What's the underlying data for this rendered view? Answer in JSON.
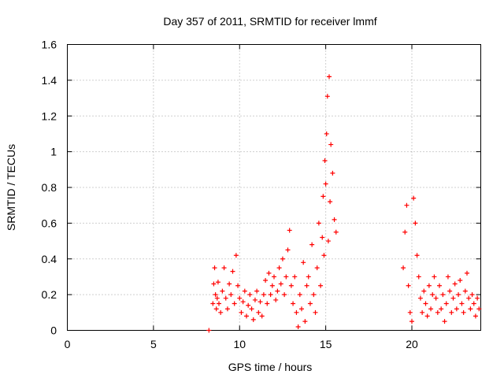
{
  "chart_data": {
    "type": "scatter",
    "title": "Day 357 of 2011, SRMTID for receiver lmmf",
    "xlabel": "GPS time / hours",
    "ylabel": "SRMTID / TECUs",
    "xlim": [
      0,
      24
    ],
    "ylim": [
      0,
      1.6
    ],
    "xticks": [
      0,
      5,
      10,
      15,
      20
    ],
    "xtick_labels": [
      "0",
      "5",
      "10",
      "15",
      "20"
    ],
    "yticks": [
      0,
      0.2,
      0.4,
      0.6,
      0.8,
      1.0,
      1.2,
      1.4,
      1.6
    ],
    "ytick_labels": [
      "0",
      "0.2",
      "0.4",
      "0.6",
      "0.8",
      "1",
      "1.2",
      "1.4",
      "1.6"
    ],
    "grid": true,
    "marker": "plus",
    "series": [
      {
        "name": "SRMTID",
        "color": "#ff0000",
        "x": [
          8.22,
          8.45,
          8.5,
          8.55,
          8.6,
          8.65,
          8.7,
          8.75,
          8.8,
          8.9,
          9.0,
          9.1,
          9.2,
          9.3,
          9.4,
          9.5,
          9.6,
          9.7,
          9.8,
          9.9,
          10.0,
          10.1,
          10.2,
          10.3,
          10.4,
          10.5,
          10.6,
          10.7,
          10.8,
          10.9,
          11.0,
          11.1,
          11.2,
          11.3,
          11.4,
          11.5,
          11.6,
          11.7,
          11.8,
          11.9,
          12.0,
          12.1,
          12.2,
          12.3,
          12.4,
          12.5,
          12.6,
          12.7,
          12.8,
          12.9,
          13.0,
          13.1,
          13.2,
          13.3,
          13.4,
          13.5,
          13.6,
          13.7,
          13.8,
          13.9,
          14.0,
          14.1,
          14.2,
          14.3,
          14.4,
          14.5,
          14.6,
          14.7,
          14.8,
          14.85,
          14.9,
          14.95,
          15.0,
          15.05,
          15.1,
          15.15,
          15.2,
          15.25,
          15.3,
          15.4,
          15.5,
          15.6,
          19.5,
          19.6,
          19.7,
          19.8,
          19.9,
          20.0,
          20.1,
          20.2,
          20.3,
          20.4,
          20.5,
          20.6,
          20.7,
          20.8,
          20.9,
          21.0,
          21.1,
          21.2,
          21.3,
          21.4,
          21.5,
          21.6,
          21.7,
          21.8,
          21.9,
          22.0,
          22.1,
          22.2,
          22.3,
          22.4,
          22.5,
          22.6,
          22.7,
          22.8,
          22.9,
          23.0,
          23.1,
          23.2,
          23.3,
          23.4,
          23.5,
          23.6,
          23.7,
          23.8,
          23.9
        ],
        "y": [
          0.0,
          0.15,
          0.26,
          0.35,
          0.2,
          0.12,
          0.18,
          0.27,
          0.15,
          0.1,
          0.22,
          0.35,
          0.18,
          0.12,
          0.26,
          0.2,
          0.33,
          0.15,
          0.42,
          0.25,
          0.18,
          0.1,
          0.16,
          0.22,
          0.08,
          0.14,
          0.2,
          0.12,
          0.06,
          0.17,
          0.22,
          0.1,
          0.16,
          0.08,
          0.2,
          0.28,
          0.15,
          0.32,
          0.2,
          0.25,
          0.3,
          0.17,
          0.22,
          0.35,
          0.26,
          0.4,
          0.2,
          0.3,
          0.45,
          0.56,
          0.25,
          0.15,
          0.3,
          0.1,
          0.02,
          0.2,
          0.12,
          0.38,
          0.05,
          0.25,
          0.3,
          0.15,
          0.48,
          0.2,
          0.1,
          0.35,
          0.6,
          0.25,
          0.52,
          0.75,
          0.42,
          0.95,
          0.82,
          1.1,
          1.31,
          0.5,
          1.42,
          0.72,
          1.04,
          0.88,
          0.62,
          0.55,
          0.35,
          0.55,
          0.7,
          0.25,
          0.1,
          0.05,
          0.74,
          0.6,
          0.42,
          0.3,
          0.18,
          0.1,
          0.22,
          0.15,
          0.08,
          0.25,
          0.12,
          0.2,
          0.3,
          0.18,
          0.1,
          0.25,
          0.12,
          0.2,
          0.05,
          0.15,
          0.3,
          0.22,
          0.1,
          0.18,
          0.26,
          0.12,
          0.2,
          0.28,
          0.15,
          0.1,
          0.22,
          0.32,
          0.18,
          0.12,
          0.2,
          0.15,
          0.08,
          0.18,
          0.12
        ]
      }
    ]
  }
}
